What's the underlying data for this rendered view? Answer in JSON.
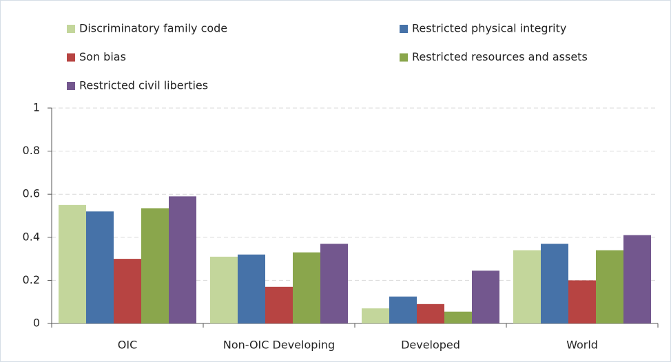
{
  "chart_data": {
    "type": "bar",
    "categories": [
      "OIC",
      "Non-OIC Developing",
      "Developed",
      "World"
    ],
    "series": [
      {
        "name": "Discriminatory family code",
        "color": "#c3d69b",
        "values": [
          0.55,
          0.31,
          0.07,
          0.34
        ]
      },
      {
        "name": "Restricted physical integrity",
        "color": "#4672a8",
        "values": [
          0.52,
          0.32,
          0.125,
          0.37
        ]
      },
      {
        "name": "Son bias",
        "color": "#b74442",
        "values": [
          0.3,
          0.17,
          0.09,
          0.2
        ]
      },
      {
        "name": "Restricted resources and assets",
        "color": "#8aa64c",
        "values": [
          0.535,
          0.33,
          0.055,
          0.34
        ]
      },
      {
        "name": "Restricted civil liberties",
        "color": "#73578e",
        "values": [
          0.59,
          0.37,
          0.245,
          0.41
        ]
      }
    ],
    "ylim": [
      0,
      1
    ],
    "yticks": [
      0,
      0.2,
      0.4,
      0.6,
      0.8,
      1
    ],
    "grid": true,
    "legend": "top"
  }
}
